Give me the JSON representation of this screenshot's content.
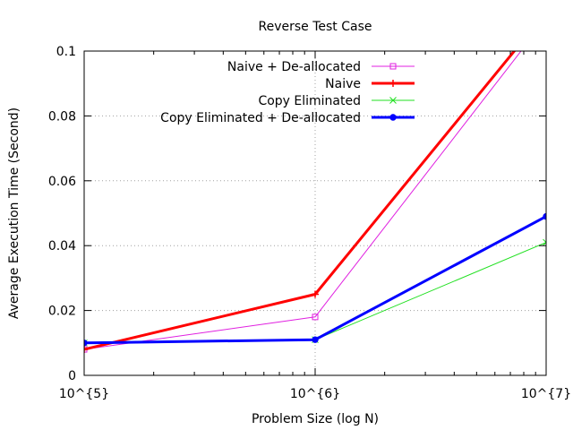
{
  "chart_data": {
    "type": "line",
    "title": "Reverse Test Case",
    "xlabel": "Problem Size (log N)",
    "ylabel": "Average Execution Time (Second)",
    "x_scale": "log",
    "x_ticks": [
      {
        "value": 100000,
        "label": "10^{5}"
      },
      {
        "value": 1000000,
        "label": "10^{6}"
      },
      {
        "value": 10000000,
        "label": "10^{7}"
      }
    ],
    "xlim": [
      100000,
      10000000
    ],
    "ylim": [
      0,
      0.1
    ],
    "y_ticks": [
      {
        "value": 0,
        "label": "0"
      },
      {
        "value": 0.02,
        "label": "0.02"
      },
      {
        "value": 0.04,
        "label": "0.04"
      },
      {
        "value": 0.06,
        "label": "0.06"
      },
      {
        "value": 0.08,
        "label": "0.08"
      },
      {
        "value": 0.1,
        "label": "0.1"
      }
    ],
    "grid": true,
    "legend_position": "top-right",
    "series": [
      {
        "name": "Naive + De-allocated",
        "color": "#e020e0",
        "width": 1,
        "marker": "square-open",
        "x": [
          100000,
          1000000,
          10000000
        ],
        "y": [
          0.008,
          0.018,
          0.11
        ]
      },
      {
        "name": "Naive",
        "color": "#ff0000",
        "width": 3,
        "marker": "plus",
        "x": [
          100000,
          1000000,
          10000000
        ],
        "y": [
          0.008,
          0.025,
          0.112
        ]
      },
      {
        "name": "Copy Eliminated",
        "color": "#20e020",
        "width": 1,
        "marker": "cross",
        "x": [
          100000,
          1000000,
          10000000
        ],
        "y": [
          0.01,
          0.011,
          0.041
        ]
      },
      {
        "name": "Copy Eliminated + De-allocated",
        "color": "#0000ff",
        "width": 3,
        "marker": "circle-filled",
        "x": [
          100000,
          1000000,
          10000000
        ],
        "y": [
          0.01,
          0.011,
          0.049
        ]
      }
    ]
  }
}
